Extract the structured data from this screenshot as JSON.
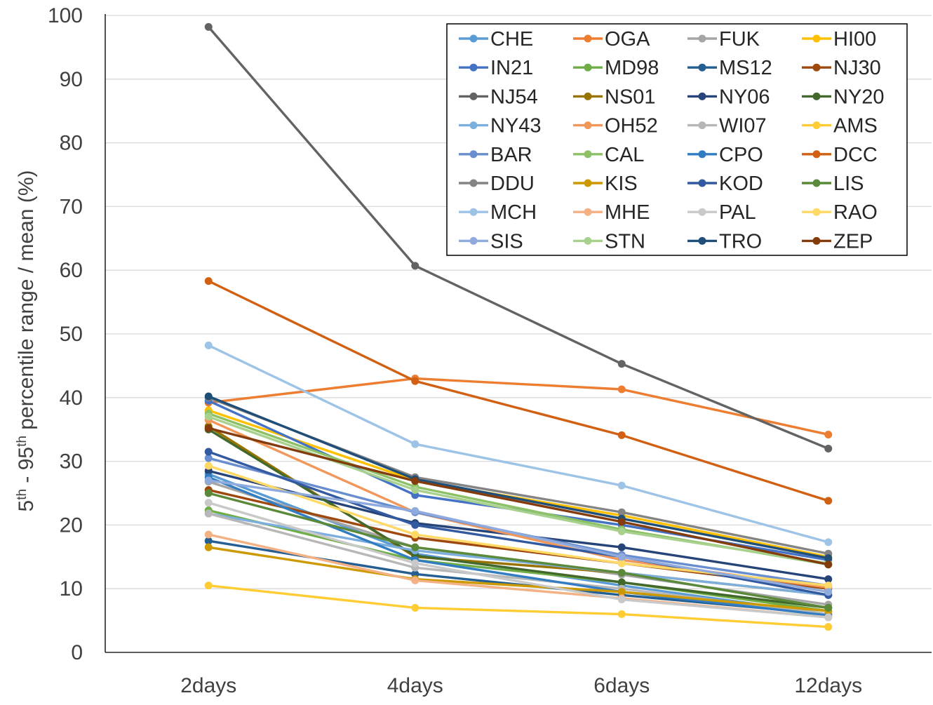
{
  "chart_data": {
    "type": "line",
    "title": "",
    "xlabel": "",
    "ylabel": {
      "parts": [
        {
          "text": "5",
          "sup": false
        },
        {
          "text": "th",
          "sup": true
        },
        {
          "text": " - 95",
          "sup": false
        },
        {
          "text": "th",
          "sup": true
        },
        {
          "text": " percentile range  / mean (%)",
          "sup": false
        }
      ]
    },
    "categories": [
      "2days",
      "4days",
      "6days",
      "12days"
    ],
    "ylim": [
      0,
      100
    ],
    "yticks": [
      0,
      10,
      20,
      30,
      40,
      50,
      60,
      70,
      80,
      90,
      100
    ],
    "grid": "horizontal",
    "legend_position": "top-right",
    "legend_columns": 4,
    "series": [
      {
        "name": "CHE",
        "color": "#5B9BD5",
        "values": [
          28.0,
          15.5,
          10.5,
          6.0
        ]
      },
      {
        "name": "OGA",
        "color": "#ED7D31",
        "values": [
          39.2,
          43.0,
          41.3,
          34.2
        ]
      },
      {
        "name": "FUK",
        "color": "#A5A5A5",
        "values": [
          26.8,
          16.5,
          12.2,
          7.5
        ]
      },
      {
        "name": "HI00",
        "color": "#FFC000",
        "values": [
          38.0,
          27.0,
          21.5,
          15.0
        ]
      },
      {
        "name": "IN21",
        "color": "#4472C4",
        "values": [
          39.5,
          24.7,
          20.0,
          14.5
        ]
      },
      {
        "name": "MD98",
        "color": "#70AD47",
        "values": [
          22.3,
          14.5,
          11.0,
          6.5
        ]
      },
      {
        "name": "MS12",
        "color": "#255E91",
        "values": [
          17.5,
          12.3,
          9.0,
          6.0
        ]
      },
      {
        "name": "NJ30",
        "color": "#9E480E",
        "values": [
          25.5,
          18.0,
          14.0,
          10.0
        ]
      },
      {
        "name": "NJ54",
        "color": "#636363",
        "values": [
          98.2,
          60.7,
          45.3,
          32.0
        ]
      },
      {
        "name": "NS01",
        "color": "#997300",
        "values": [
          35.5,
          15.0,
          12.5,
          9.0
        ]
      },
      {
        "name": "NY06",
        "color": "#264478",
        "values": [
          28.5,
          20.3,
          16.5,
          11.5
        ]
      },
      {
        "name": "NY20",
        "color": "#43682B",
        "values": [
          35.0,
          15.2,
          11.0,
          7.0
        ]
      },
      {
        "name": "NY43",
        "color": "#7CAFDD",
        "values": [
          21.8,
          16.0,
          12.5,
          9.0
        ]
      },
      {
        "name": "OH52",
        "color": "#F1975A",
        "values": [
          36.5,
          22.0,
          14.5,
          10.2
        ]
      },
      {
        "name": "WI07",
        "color": "#B7B7B7",
        "values": [
          21.8,
          13.3,
          10.0,
          6.0
        ]
      },
      {
        "name": "AMS",
        "color": "#FFCD33",
        "values": [
          10.5,
          7.0,
          6.0,
          4.0
        ]
      },
      {
        "name": "BAR",
        "color": "#698ED0",
        "values": [
          30.5,
          22.0,
          15.3,
          10.5
        ]
      },
      {
        "name": "CAL",
        "color": "#8CC168",
        "values": [
          37.5,
          26.0,
          19.3,
          13.8
        ]
      },
      {
        "name": "CPO",
        "color": "#327DC2",
        "values": [
          27.5,
          14.5,
          9.5,
          5.8
        ]
      },
      {
        "name": "DCC",
        "color": "#D26012",
        "values": [
          58.3,
          42.6,
          34.1,
          23.8
        ]
      },
      {
        "name": "DDU",
        "color": "#848484",
        "values": [
          40.0,
          27.5,
          22.0,
          15.5
        ]
      },
      {
        "name": "KIS",
        "color": "#CC9A00",
        "values": [
          16.5,
          11.5,
          9.5,
          6.5
        ]
      },
      {
        "name": "KOD",
        "color": "#335AA1",
        "values": [
          31.5,
          20.0,
          15.0,
          9.0
        ]
      },
      {
        "name": "LIS",
        "color": "#5A8A39",
        "values": [
          25.0,
          16.5,
          12.5,
          7.0
        ]
      },
      {
        "name": "MCH",
        "color": "#9DC3E6",
        "values": [
          48.2,
          32.7,
          26.2,
          17.3
        ]
      },
      {
        "name": "MHE",
        "color": "#F4B183",
        "values": [
          18.5,
          11.3,
          8.5,
          5.5
        ]
      },
      {
        "name": "PAL",
        "color": "#C9C9C9",
        "values": [
          23.5,
          14.0,
          8.3,
          5.5
        ]
      },
      {
        "name": "RAO",
        "color": "#FFD966",
        "values": [
          29.3,
          18.5,
          14.0,
          10.5
        ]
      },
      {
        "name": "SIS",
        "color": "#8FAADC",
        "values": [
          27.0,
          22.2,
          15.0,
          9.5
        ]
      },
      {
        "name": "STN",
        "color": "#A9D18E",
        "values": [
          37.0,
          25.5,
          19.0,
          14.0
        ]
      },
      {
        "name": "TRO",
        "color": "#1F4E79",
        "values": [
          40.2,
          27.2,
          21.0,
          14.8
        ]
      },
      {
        "name": "ZEP",
        "color": "#843C0C",
        "values": [
          35.2,
          26.9,
          20.5,
          13.8
        ]
      }
    ]
  }
}
